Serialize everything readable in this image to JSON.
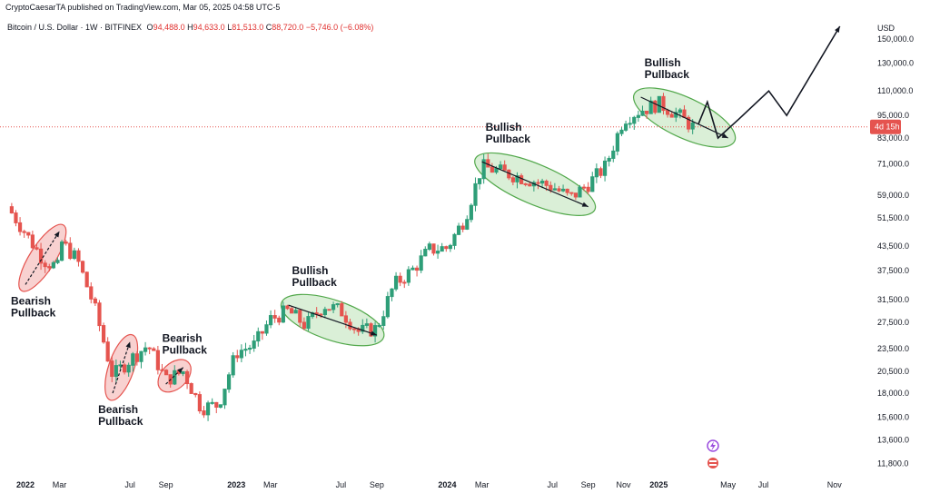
{
  "header": {
    "attribution": "CryptoCaesarTA published on TradingView.com, Mar 05, 2025 04:58 UTC-5"
  },
  "symbol_bar": {
    "pair": "Bitcoin / U.S. Dollar · 1W · BITFINEX",
    "o_label": "O",
    "o_value": "94,488.0",
    "h_label": "H",
    "h_value": "94,633.0",
    "l_label": "L",
    "l_value": "81,513.0",
    "c_label": "C",
    "c_value": "88,720.0",
    "change": "−5,746.0 (−6.08%)"
  },
  "chart_data": {
    "type": "line",
    "chart_style": "candlestick",
    "currency_label": "USD",
    "y_scale": "log",
    "ylim": [
      10800,
      172000
    ],
    "y_ticks": [
      150000,
      130000,
      110000,
      95000,
      83000,
      71000,
      59000,
      51500,
      43500,
      37500,
      31500,
      27500,
      23500,
      20500,
      18000,
      15600,
      13600,
      11800
    ],
    "y_tick_labels": [
      "150,000.0",
      "130,000.0",
      "110,000.0",
      "95,000.0",
      "83,000.0",
      "71,000.0",
      "59,000.0",
      "51,500.0",
      "43,500.0",
      "37,500.0",
      "31,500.0",
      "27,500.0",
      "23,500.0",
      "20,500.0",
      "18,000.0",
      "15,600.0",
      "13,600.0",
      "11,800.0"
    ],
    "x_tick_labels": [
      {
        "label": "2022",
        "bold": true,
        "date": "2022-01"
      },
      {
        "label": "Mar",
        "bold": false,
        "date": "2022-03"
      },
      {
        "label": "Jul",
        "bold": false,
        "date": "2022-07"
      },
      {
        "label": "Sep",
        "bold": false,
        "date": "2022-09"
      },
      {
        "label": "2023",
        "bold": true,
        "date": "2023-01"
      },
      {
        "label": "Mar",
        "bold": false,
        "date": "2023-03"
      },
      {
        "label": "Jul",
        "bold": false,
        "date": "2023-07"
      },
      {
        "label": "Sep",
        "bold": false,
        "date": "2023-09"
      },
      {
        "label": "2024",
        "bold": true,
        "date": "2024-01"
      },
      {
        "label": "Mar",
        "bold": false,
        "date": "2024-03"
      },
      {
        "label": "Jul",
        "bold": false,
        "date": "2024-07"
      },
      {
        "label": "Sep",
        "bold": false,
        "date": "2024-09"
      },
      {
        "label": "Nov",
        "bold": false,
        "date": "2024-11"
      },
      {
        "label": "2025",
        "bold": true,
        "date": "2025-01"
      },
      {
        "label": "May",
        "bold": false,
        "date": "2025-05"
      },
      {
        "label": "Jul",
        "bold": false,
        "date": "2025-07"
      },
      {
        "label": "Nov",
        "bold": false,
        "date": "2025-11"
      }
    ],
    "current_price": 88720,
    "current_price_tag": "4d 15h",
    "colors": {
      "up": "#2e9e78",
      "down": "#e5544f",
      "bearish_zone": "#f7c9c8",
      "bullish_zone": "#d4ecd0",
      "price_line": "#e5544f"
    },
    "price_path": [
      [
        "2021-12",
        55000
      ],
      [
        "2022-01",
        47000
      ],
      [
        "2022-02",
        40000
      ],
      [
        "2022-03",
        38000
      ],
      [
        "2022-03",
        45000
      ],
      [
        "2022-04",
        40000
      ],
      [
        "2022-05",
        30000
      ],
      [
        "2022-06",
        20000
      ],
      [
        "2022-07",
        22000
      ],
      [
        "2022-08",
        24000
      ],
      [
        "2022-09",
        19500
      ],
      [
        "2022-10",
        20500
      ],
      [
        "2022-11",
        16500
      ],
      [
        "2022-12",
        16800
      ],
      [
        "2023-01",
        23000
      ],
      [
        "2023-02",
        24000
      ],
      [
        "2023-03",
        28000
      ],
      [
        "2023-04",
        29500
      ],
      [
        "2023-05",
        27000
      ],
      [
        "2023-06",
        30500
      ],
      [
        "2023-07",
        29500
      ],
      [
        "2023-08",
        26000
      ],
      [
        "2023-09",
        26500
      ],
      [
        "2023-10",
        34500
      ],
      [
        "2023-11",
        37500
      ],
      [
        "2023-12",
        42500
      ],
      [
        "2024-01",
        43000
      ],
      [
        "2024-02",
        51500
      ],
      [
        "2024-03",
        70000
      ],
      [
        "2024-05",
        66000
      ],
      [
        "2024-07",
        62000
      ],
      [
        "2024-08",
        58000
      ],
      [
        "2024-09",
        63000
      ],
      [
        "2024-10",
        70000
      ],
      [
        "2024-11",
        93000
      ],
      [
        "2024-12",
        98000
      ],
      [
        "2025-01",
        102000
      ],
      [
        "2025-02",
        96000
      ],
      [
        "2025-03",
        88720
      ]
    ],
    "annotations": [
      {
        "text_line1": "Bearish",
        "text_line2": "Pullback",
        "type": "bearish",
        "from": [
          "2022-01",
          34500
        ],
        "to": [
          "2022-03",
          47500
        ]
      },
      {
        "text_line1": "Bearish",
        "text_line2": "Pullback",
        "type": "bearish",
        "from": [
          "2022-06",
          18000
        ],
        "to": [
          "2022-07",
          24500
        ]
      },
      {
        "text_line1": "Bearish",
        "text_line2": "Pullback",
        "type": "bearish",
        "from": [
          "2022-09",
          19000
        ],
        "to": [
          "2022-10",
          21000
        ]
      },
      {
        "text_line1": "Bullish",
        "text_line2": "Pullback",
        "type": "bullish",
        "from": [
          "2023-04",
          30500
        ],
        "to": [
          "2023-09",
          25500
        ]
      },
      {
        "text_line1": "Bullish",
        "text_line2": "Pullback",
        "type": "bullish",
        "from": [
          "2024-03",
          72000
        ],
        "to": [
          "2024-09",
          55000
        ]
      },
      {
        "text_line1": "Bullish",
        "text_line2": "Pullback",
        "type": "bullish",
        "from": [
          "2024-12",
          106000
        ],
        "to": [
          "2025-05",
          83000
        ]
      }
    ],
    "projection_path": [
      [
        "2025-03",
        90000
      ],
      [
        "2025-03",
        103000
      ],
      [
        "2025-04",
        83000
      ],
      [
        "2025-05",
        93000
      ],
      [
        "2025-07",
        110000
      ],
      [
        "2025-08",
        95000
      ],
      [
        "2025-11",
        162000
      ]
    ]
  }
}
